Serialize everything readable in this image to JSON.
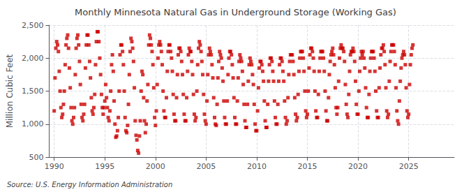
{
  "chart_data": {
    "type": "scatter",
    "title": "Monthly Minnesota Natural Gas in Underground Storage (Working Gas)",
    "ylabel": "Million Cubic Feet",
    "annotations": [
      "Source: U.S. Energy Information Administration"
    ],
    "color": "#cc0000",
    "marker": "square",
    "grid": true,
    "xlim": [
      1989.5,
      2029.5
    ],
    "xticks": [
      1990,
      1995,
      2000,
      2005,
      2010,
      2015,
      2020,
      2025
    ],
    "ylim": [
      500,
      2500
    ],
    "yticks": [
      500,
      {
        "value": 1000,
        "label": "1,000"
      },
      {
        "value": 1500,
        "label": "1,500"
      },
      {
        "value": 2000,
        "label": "2,000"
      },
      {
        "value": 2500,
        "label": "2,500"
      }
    ],
    "x": [
      1990,
      1990.083333,
      1990.166667,
      1990.25,
      1990.333333,
      1990.416667,
      1990.5,
      1990.583333,
      1990.666667,
      1990.75,
      1990.833333,
      1990.916667,
      1991,
      1991.083333,
      1991.166667,
      1991.25,
      1991.333333,
      1991.416667,
      1991.5,
      1991.583333,
      1991.666667,
      1991.75,
      1991.833333,
      1991.916667,
      1992,
      1992.083333,
      1992.166667,
      1992.25,
      1992.333333,
      1992.416667,
      1992.5,
      1992.583333,
      1992.666667,
      1992.75,
      1992.833333,
      1992.916667,
      1993,
      1993.083333,
      1993.166667,
      1993.25,
      1993.333333,
      1993.416667,
      1993.5,
      1993.583333,
      1993.666667,
      1993.75,
      1993.833333,
      1993.916667,
      1994,
      1994.083333,
      1994.166667,
      1994.25,
      1994.333333,
      1994.416667,
      1994.5,
      1994.583333,
      1994.666667,
      1994.75,
      1994.833333,
      1994.916667,
      1995,
      1995.083333,
      1995.166667,
      1995.25,
      1995.333333,
      1995.416667,
      1995.5,
      1995.583333,
      1995.666667,
      1995.75,
      1995.833333,
      1995.916667,
      1996,
      1996.083333,
      1996.166667,
      1996.25,
      1996.333333,
      1996.416667,
      1996.5,
      1996.583333,
      1996.666667,
      1996.75,
      1996.833333,
      1996.916667,
      1997,
      1997.083333,
      1997.166667,
      1997.25,
      1997.333333,
      1997.416667,
      1997.5,
      1997.583333,
      1997.666667,
      1997.75,
      1997.833333,
      1997.916667,
      1998,
      1998.083333,
      1998.166667,
      1998.25,
      1998.333333,
      1998.416667,
      1998.5,
      1998.583333,
      1998.666667,
      1998.75,
      1998.833333,
      1998.916667,
      1999,
      1999.083333,
      1999.166667,
      1999.25,
      1999.333333,
      1999.416667,
      1999.5,
      1999.583333,
      1999.666667,
      1999.75,
      1999.833333,
      1999.916667,
      2000,
      2000.083333,
      2000.166667,
      2000.25,
      2000.333333,
      2000.416667,
      2000.5,
      2000.583333,
      2000.666667,
      2000.75,
      2000.833333,
      2000.916667,
      2001,
      2001.083333,
      2001.166667,
      2001.25,
      2001.333333,
      2001.416667,
      2001.5,
      2001.583333,
      2001.666667,
      2001.75,
      2001.833333,
      2001.916667,
      2002,
      2002.083333,
      2002.166667,
      2002.25,
      2002.333333,
      2002.416667,
      2002.5,
      2002.583333,
      2002.666667,
      2002.75,
      2002.833333,
      2002.916667,
      2003,
      2003.083333,
      2003.166667,
      2003.25,
      2003.333333,
      2003.416667,
      2003.5,
      2003.583333,
      2003.666667,
      2003.75,
      2003.833333,
      2003.916667,
      2004,
      2004.083333,
      2004.166667,
      2004.25,
      2004.333333,
      2004.416667,
      2004.5,
      2004.583333,
      2004.666667,
      2004.75,
      2004.833333,
      2004.916667,
      2005,
      2005.083333,
      2005.166667,
      2005.25,
      2005.333333,
      2005.416667,
      2005.5,
      2005.583333,
      2005.666667,
      2005.75,
      2005.833333,
      2005.916667,
      2006,
      2006.083333,
      2006.166667,
      2006.25,
      2006.333333,
      2006.416667,
      2006.5,
      2006.583333,
      2006.666667,
      2006.75,
      2006.833333,
      2006.916667,
      2007,
      2007.083333,
      2007.166667,
      2007.25,
      2007.333333,
      2007.416667,
      2007.5,
      2007.583333,
      2007.666667,
      2007.75,
      2007.833333,
      2007.916667,
      2008,
      2008.083333,
      2008.166667,
      2008.25,
      2008.333333,
      2008.416667,
      2008.5,
      2008.583333,
      2008.666667,
      2008.75,
      2008.833333,
      2008.916667,
      2009,
      2009.083333,
      2009.166667,
      2009.25,
      2009.333333,
      2009.416667,
      2009.5,
      2009.583333,
      2009.666667,
      2009.75,
      2009.833333,
      2009.916667,
      2010,
      2010.083333,
      2010.166667,
      2010.25,
      2010.333333,
      2010.416667,
      2010.5,
      2010.583333,
      2010.666667,
      2010.75,
      2010.833333,
      2010.916667,
      2011,
      2011.083333,
      2011.166667,
      2011.25,
      2011.333333,
      2011.416667,
      2011.5,
      2011.583333,
      2011.666667,
      2011.75,
      2011.833333,
      2011.916667,
      2012,
      2012.083333,
      2012.166667,
      2012.25,
      2012.333333,
      2012.416667,
      2012.5,
      2012.583333,
      2012.666667,
      2012.75,
      2012.833333,
      2012.916667,
      2013,
      2013.083333,
      2013.166667,
      2013.25,
      2013.333333,
      2013.416667,
      2013.5,
      2013.583333,
      2013.666667,
      2013.75,
      2013.833333,
      2013.916667,
      2014,
      2014.083333,
      2014.166667,
      2014.25,
      2014.333333,
      2014.416667,
      2014.5,
      2014.583333,
      2014.666667,
      2014.75,
      2014.833333,
      2014.916667,
      2015,
      2015.083333,
      2015.166667,
      2015.25,
      2015.333333,
      2015.416667,
      2015.5,
      2015.583333,
      2015.666667,
      2015.75,
      2015.833333,
      2015.916667,
      2016,
      2016.083333,
      2016.166667,
      2016.25,
      2016.333333,
      2016.416667,
      2016.5,
      2016.583333,
      2016.666667,
      2016.75,
      2016.833333,
      2016.916667,
      2017,
      2017.083333,
      2017.166667,
      2017.25,
      2017.333333,
      2017.416667,
      2017.5,
      2017.583333,
      2017.666667,
      2017.75,
      2017.833333,
      2017.916667,
      2018,
      2018.083333,
      2018.166667,
      2018.25,
      2018.333333,
      2018.416667,
      2018.5,
      2018.583333,
      2018.666667,
      2018.75,
      2018.833333,
      2018.916667,
      2019,
      2019.083333,
      2019.166667,
      2019.25,
      2019.333333,
      2019.416667,
      2019.5,
      2019.583333,
      2019.666667,
      2019.75,
      2019.833333,
      2019.916667,
      2020,
      2020.083333,
      2020.166667,
      2020.25,
      2020.333333,
      2020.416667,
      2020.5,
      2020.583333,
      2020.666667,
      2020.75,
      2020.833333,
      2020.916667,
      2021,
      2021.083333,
      2021.166667,
      2021.25,
      2021.333333,
      2021.416667,
      2021.5,
      2021.583333,
      2021.666667,
      2021.75,
      2021.833333,
      2021.916667,
      2022,
      2022.083333,
      2022.166667,
      2022.25,
      2022.333333,
      2022.416667,
      2022.5,
      2022.583333,
      2022.666667,
      2022.75,
      2022.833333,
      2022.916667,
      2023,
      2023.083333,
      2023.166667,
      2023.25,
      2023.333333,
      2023.416667,
      2023.5,
      2023.583333,
      2023.666667,
      2023.75,
      2023.833333,
      2023.916667,
      2024,
      2024.083333,
      2024.166667,
      2024.25,
      2024.333333,
      2024.416667,
      2024.5,
      2024.583333,
      2024.666667,
      2024.75,
      2024.833333,
      2024.916667,
      2025,
      2025.083333,
      2025.166667,
      2025.25,
      2025.333333,
      2025.416667
    ],
    "values": [
      1200,
      1700,
      2150,
      2250,
      2200,
      2100,
      1800,
      1500,
      1250,
      1100,
      1150,
      1300,
      1500,
      1900,
      2200,
      2300,
      2350,
      2150,
      1850,
      1550,
      1250,
      1050,
      1000,
      1100,
      1250,
      1750,
      2150,
      2300,
      2350,
      2200,
      1950,
      1600,
      1300,
      1100,
      1050,
      1150,
      1300,
      1850,
      2200,
      2350,
      2350,
      2200,
      1950,
      1700,
      1400,
      1200,
      1150,
      1250,
      1450,
      1900,
      2250,
      2400,
      2400,
      2250,
      2000,
      1750,
      1450,
      1250,
      1150,
      1250,
      1350,
      1600,
      1400,
      1250,
      1100,
      1050,
      1200,
      1500,
      1900,
      2050,
      1800,
      1350,
      1000,
      800,
      820,
      900,
      1100,
      1500,
      2050,
      2200,
      2200,
      2100,
      1900,
      1500,
      1100,
      900,
      870,
      980,
      1300,
      1750,
      2100,
      2300,
      2250,
      2150,
      1950,
      1550,
      1050,
      830,
      760,
      600,
      560,
      820,
      1050,
      1500,
      1800,
      1750,
      1400,
      1050,
      870,
      1000,
      1350,
      1600,
      2200,
      2350,
      2300,
      2200,
      2100,
      1900,
      1550,
      1100,
      980,
      1200,
      1600,
      2000,
      2200,
      2250,
      2200,
      2100,
      1900,
      1500,
      1200,
      1100,
      1100,
      1400,
      1800,
      2100,
      2200,
      2200,
      2100,
      2000,
      1800,
      1450,
      1150,
      1050,
      1050,
      1400,
      1750,
      2050,
      2150,
      2150,
      2100,
      1950,
      1750,
      1450,
      1150,
      1050,
      1050,
      1400,
      1800,
      2050,
      2150,
      2100,
      2100,
      1950,
      1750,
      1450,
      1150,
      1050,
      1100,
      1500,
      1900,
      2150,
      2250,
      2200,
      2100,
      1950,
      1750,
      1450,
      1150,
      1050,
      1000,
      1350,
      1750,
      2050,
      2150,
      2100,
      2050,
      1900,
      1700,
      1400,
      1100,
      1000,
      980,
      1300,
      1700,
      1950,
      2100,
      2050,
      2000,
      1850,
      1650,
      1350,
      1100,
      1000,
      1000,
      1350,
      1750,
      2000,
      2100,
      2100,
      2050,
      1900,
      1700,
      1400,
      1100,
      1000,
      1000,
      1350,
      1700,
      1950,
      2050,
      2000,
      1950,
      1800,
      1600,
      1300,
      1050,
      950,
      950,
      1300,
      1650,
      1900,
      2000,
      1950,
      1900,
      1750,
      1600,
      1300,
      1000,
      900,
      900,
      1200,
      1550,
      1850,
      1950,
      1950,
      1900,
      1800,
      1650,
      1350,
      1050,
      950,
      950,
      1300,
      1650,
      1900,
      2000,
      2000,
      1950,
      1800,
      1650,
      1350,
      1100,
      1000,
      1000,
      1300,
      1650,
      1900,
      2000,
      2000,
      1950,
      1800,
      1650,
      1350,
      1100,
      1000,
      1050,
      1400,
      1750,
      1950,
      2050,
      2050,
      2050,
      1950,
      1750,
      1400,
      1150,
      1050,
      1100,
      1450,
      1800,
      2000,
      2100,
      2100,
      2100,
      2000,
      1800,
      1500,
      1200,
      1100,
      1150,
      1500,
      1850,
      2050,
      2150,
      2150,
      2100,
      2000,
      1800,
      1500,
      1200,
      1100,
      1100,
      1450,
      1800,
      2000,
      2100,
      2100,
      2100,
      2000,
      1800,
      1500,
      1200,
      1050,
      1050,
      1400,
      1750,
      1950,
      2050,
      2100,
      2150,
      2050,
      1900,
      1550,
      1250,
      1150,
      1250,
      1650,
      2000,
      2150,
      2200,
      2150,
      2150,
      2100,
      1950,
      1600,
      1300,
      1150,
      1100,
      1450,
      1800,
      2050,
      2100,
      2100,
      2150,
      2100,
      1950,
      1650,
      1300,
      1150,
      1150,
      1500,
      1800,
      2000,
      2100,
      2050,
      2100,
      2000,
      1850,
      1550,
      1250,
      1100,
      1100,
      1450,
      1800,
      2000,
      2100,
      2100,
      2100,
      2000,
      1800,
      1500,
      1200,
      1100,
      1100,
      1550,
      1850,
      2050,
      2150,
      2150,
      2200,
      2100,
      1900,
      1550,
      1200,
      1100,
      1150,
      1650,
      1950,
      2100,
      2200,
      2200,
      2200,
      2100,
      1900,
      1550,
      1200,
      1050,
      1000,
      1350,
      1650,
      1850,
      2000,
      2050,
      2100,
      2050,
      1900,
      1550,
      1200,
      1100,
      1150,
      1600,
      1900,
      2050,
      2150,
      2200
    ]
  }
}
